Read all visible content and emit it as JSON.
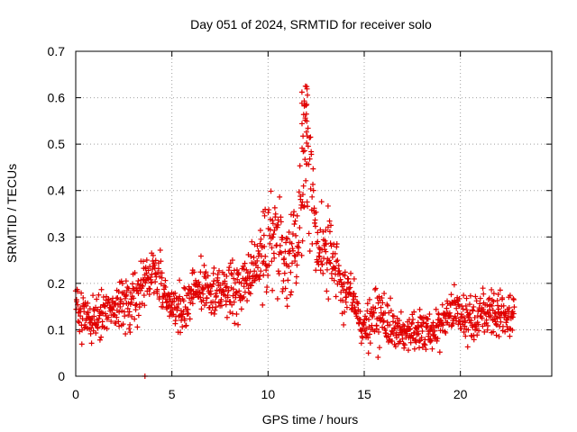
{
  "chart_data": {
    "type": "scatter",
    "title": "Day 051 of 2024, SRMTID for receiver solo",
    "xlabel": "GPS time / hours",
    "ylabel": "SRMTID / TECUs",
    "xlim": [
      0,
      24.75
    ],
    "ylim": [
      0,
      0.7
    ],
    "xticks": [
      0,
      5,
      10,
      15,
      20
    ],
    "yticks": [
      0,
      0.1,
      0.2,
      0.3,
      0.4,
      0.5,
      0.6,
      0.7
    ],
    "xtick_labels": [
      "0",
      "5",
      "10",
      "15",
      "20"
    ],
    "ytick_labels": [
      "0",
      "0.1",
      "0.2",
      "0.3",
      "0.4",
      "0.5",
      "0.6",
      "0.7"
    ],
    "grid": true,
    "marker": "+",
    "color": "#e00000",
    "series": [
      {
        "name": "SRMTID",
        "profile_hours": [
          0.0,
          0.5,
          1.0,
          1.5,
          2.0,
          2.5,
          3.0,
          3.5,
          4.0,
          4.5,
          5.0,
          5.5,
          6.0,
          6.5,
          7.0,
          7.5,
          8.0,
          8.5,
          9.0,
          9.5,
          10.0,
          10.5,
          11.0,
          11.5,
          12.0,
          12.5,
          13.0,
          13.5,
          14.0,
          14.5,
          15.0,
          15.5,
          16.0,
          16.5,
          17.0,
          17.5,
          18.0,
          18.5,
          19.0,
          19.5,
          20.0,
          20.5,
          21.0,
          21.5,
          22.0,
          22.5,
          22.8
        ],
        "profile_mean": [
          0.16,
          0.13,
          0.12,
          0.14,
          0.15,
          0.14,
          0.16,
          0.2,
          0.23,
          0.19,
          0.15,
          0.14,
          0.17,
          0.19,
          0.18,
          0.17,
          0.18,
          0.19,
          0.21,
          0.24,
          0.3,
          0.28,
          0.25,
          0.3,
          0.48,
          0.3,
          0.27,
          0.24,
          0.19,
          0.15,
          0.1,
          0.13,
          0.12,
          0.11,
          0.09,
          0.1,
          0.1,
          0.08,
          0.12,
          0.14,
          0.13,
          0.12,
          0.13,
          0.15,
          0.13,
          0.14,
          0.14
        ],
        "profile_spread": [
          0.04,
          0.05,
          0.04,
          0.04,
          0.04,
          0.05,
          0.05,
          0.05,
          0.04,
          0.05,
          0.04,
          0.04,
          0.04,
          0.04,
          0.04,
          0.04,
          0.05,
          0.05,
          0.05,
          0.06,
          0.09,
          0.08,
          0.06,
          0.08,
          0.12,
          0.08,
          0.07,
          0.06,
          0.05,
          0.04,
          0.03,
          0.05,
          0.04,
          0.04,
          0.03,
          0.03,
          0.04,
          0.04,
          0.04,
          0.04,
          0.04,
          0.04,
          0.05,
          0.04,
          0.04,
          0.04,
          0.03
        ],
        "peak_value": 0.63,
        "peak_hour": 11.9,
        "zero_point": [
          3.6,
          0.0
        ]
      }
    ]
  }
}
